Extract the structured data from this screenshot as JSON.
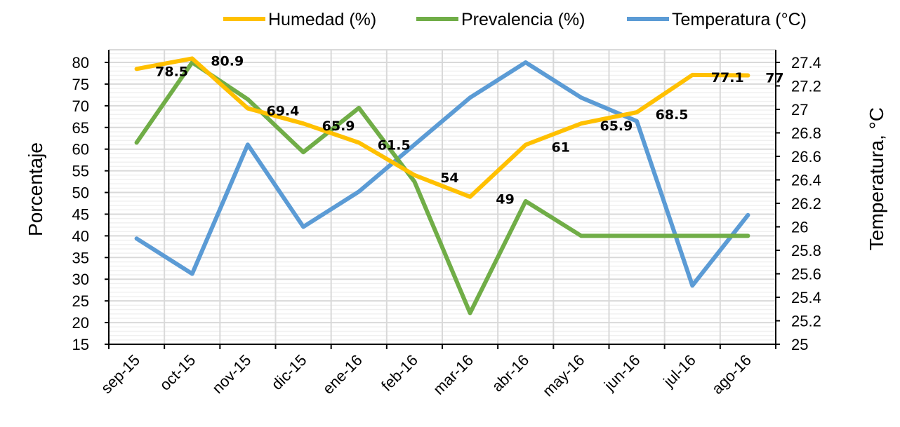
{
  "chart_data": {
    "type": "line",
    "title": "",
    "categories": [
      "sep-15",
      "oct-15",
      "nov-15",
      "dic-15",
      "ene-16",
      "feb-16",
      "mar-16",
      "abr-16",
      "may-16",
      "jun-16",
      "jul-16",
      "ago-16"
    ],
    "ylabel": "Porcentaje",
    "y2label": "Temperatura, °C",
    "ylim": [
      15,
      80
    ],
    "yticks": [
      15,
      20,
      25,
      30,
      35,
      40,
      45,
      50,
      55,
      60,
      65,
      70,
      75,
      80
    ],
    "y2lim": [
      25,
      27.4
    ],
    "y2ticks": [
      "25",
      "25.2",
      "25.4",
      "25.6",
      "25.8",
      "26",
      "26.2",
      "26.4",
      "26.6",
      "26.8",
      "27",
      "27.2",
      "27.4"
    ],
    "grid": true,
    "legend_position": "top",
    "series": [
      {
        "name": "Humedad (%)",
        "axis": "left",
        "color": "#FFC000",
        "values": [
          78.5,
          80.9,
          69.4,
          65.9,
          61.5,
          54,
          49,
          61,
          65.9,
          68.5,
          77.1,
          77
        ],
        "labels": [
          "78.5",
          "80.9",
          "69.4",
          "65.9",
          "61.5",
          "54",
          "49",
          "61",
          "65.9",
          "68.5",
          "77.1",
          "77"
        ]
      },
      {
        "name": "Prevalencia (%)",
        "axis": "left",
        "color": "#70AD47",
        "values": [
          61.5,
          80,
          71.5,
          59.3,
          69.5,
          52.5,
          22.2,
          48,
          40,
          40,
          40,
          40
        ]
      },
      {
        "name": "Temperatura (°C)",
        "axis": "right",
        "color": "#5B9BD5",
        "values": [
          25.9,
          25.6,
          26.7,
          26.0,
          26.3,
          26.7,
          27.1,
          27.4,
          27.1,
          26.9,
          25.5,
          26.1
        ]
      }
    ]
  }
}
